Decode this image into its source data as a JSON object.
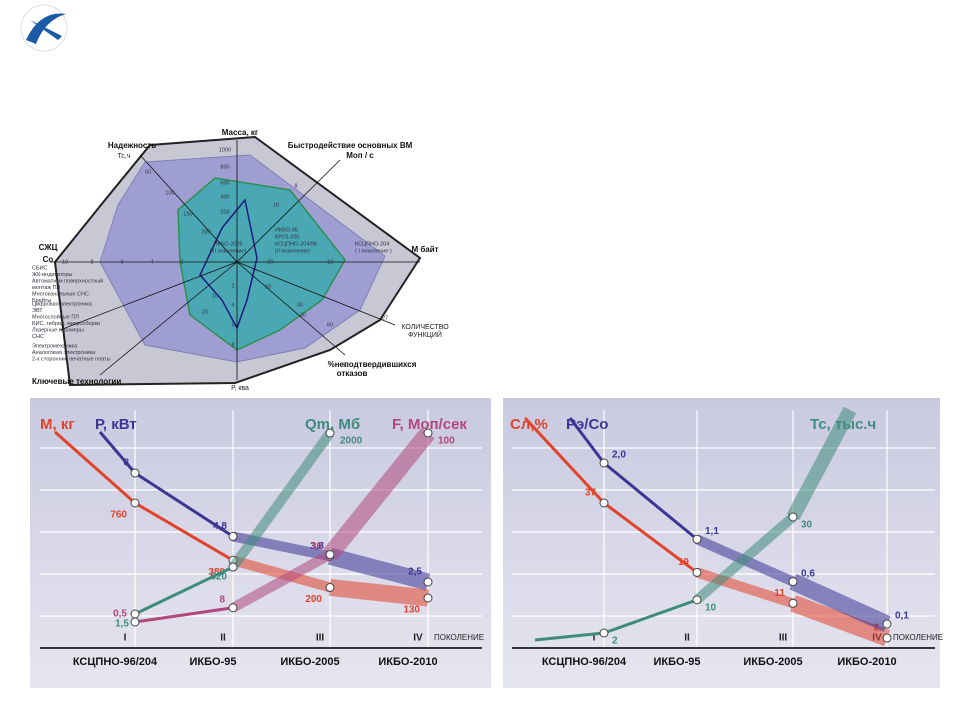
{
  "diagram": {
    "axes": [
      "Масса, кг",
      "Надежность",
      "Тс,ч",
      "Быстродействие основных ВМ",
      "Моп / с",
      "СЖЦ",
      "Со",
      "М байт",
      "Р, ква",
      "%неподтвердившихся",
      "отказов",
      "КОЛИЧЕСТВО",
      "ФУНКЦИЙ",
      "Ключевые технологии"
    ],
    "ticks": [
      "1000",
      "800",
      "600",
      "400",
      "200",
      "2",
      "4",
      "6",
      "8",
      "10",
      "8",
      "6",
      "4",
      "2",
      "50",
      "100",
      "150",
      "200",
      "8",
      "16",
      "12",
      "20",
      "20",
      "40",
      "60",
      "27",
      "50",
      "30",
      "10",
      "20"
    ],
    "generations": [
      "ИКБО-2005",
      "(III поколение)",
      "ИКБО-95",
      "КРУЗ-200",
      "КСЦПНО-204/96",
      "(II поколение)",
      "КСЦПНО-204",
      "( I поколение )"
    ],
    "notes": [
      [
        "СБИС",
        "ЖК-индикаторы",
        "Автоматизм поверхностный",
        "монтаж  ПЛ",
        "Многоканальные СНС",
        "Брейты"
      ],
      [
        "Цифровая электроника",
        "ЭВТ",
        "Многослойные ПЛ",
        "БИС, гибрид. микросборки",
        "Лазерные гиромеры",
        "СНС"
      ],
      [
        "Электромеханика",
        "Аналоговая электроника",
        "2-х сторонние печатные платы"
      ]
    ]
  },
  "chart_data": [
    {
      "type": "line",
      "categories": [
        "I",
        "II",
        "III",
        "IV"
      ],
      "category_names": [
        "КСЦПНО-96/204",
        "ИКБО-95",
        "ИКБО-2005",
        "ИКБО-2010"
      ],
      "x_label": "ПОКОЛЕНИЕ",
      "series": [
        {
          "name": "М, кг",
          "color": "#e2432b",
          "values": [
            760,
            380,
            200,
            130
          ]
        },
        {
          "name": "Р, кВт",
          "color": "#3d3593",
          "values": [
            8,
            4.8,
            3.8,
            2.5
          ],
          "value_labels": [
            "8",
            "4,8",
            "3,8",
            "2,5"
          ]
        },
        {
          "name": "Qm, Мб",
          "color": "#3f8c7c",
          "values": [
            1.5,
            520,
            2000,
            null
          ],
          "value_labels": [
            "1,5",
            "520",
            "2000",
            null
          ]
        },
        {
          "name": "F, Моп/сек",
          "color": "#b0487c",
          "values": [
            0.5,
            8,
            36,
            100
          ],
          "value_labels": [
            "0,5",
            "8",
            "36",
            "100"
          ]
        }
      ]
    },
    {
      "type": "line",
      "categories": [
        "I",
        "II",
        "III",
        "IV"
      ],
      "category_names": [
        "КСЦПНО-96/204",
        "ИКБО-95",
        "ИКБО-2005",
        "ИКБО-2010"
      ],
      "x_label": "ПОКОЛЕНИЕ",
      "series": [
        {
          "name": "Сл,%",
          "color": "#e2432b",
          "values": [
            37,
            19,
            11,
            2
          ]
        },
        {
          "name": "Рэ/Сo",
          "color": "#3d3593",
          "values": [
            2.0,
            1.1,
            0.6,
            0.1
          ],
          "value_labels": [
            "2,0",
            "1,1",
            "0,6",
            "0,1"
          ]
        },
        {
          "name": "Тс, тыс.ч",
          "color": "#3f8c7c",
          "values": [
            2,
            10,
            30,
            null
          ]
        }
      ]
    }
  ]
}
